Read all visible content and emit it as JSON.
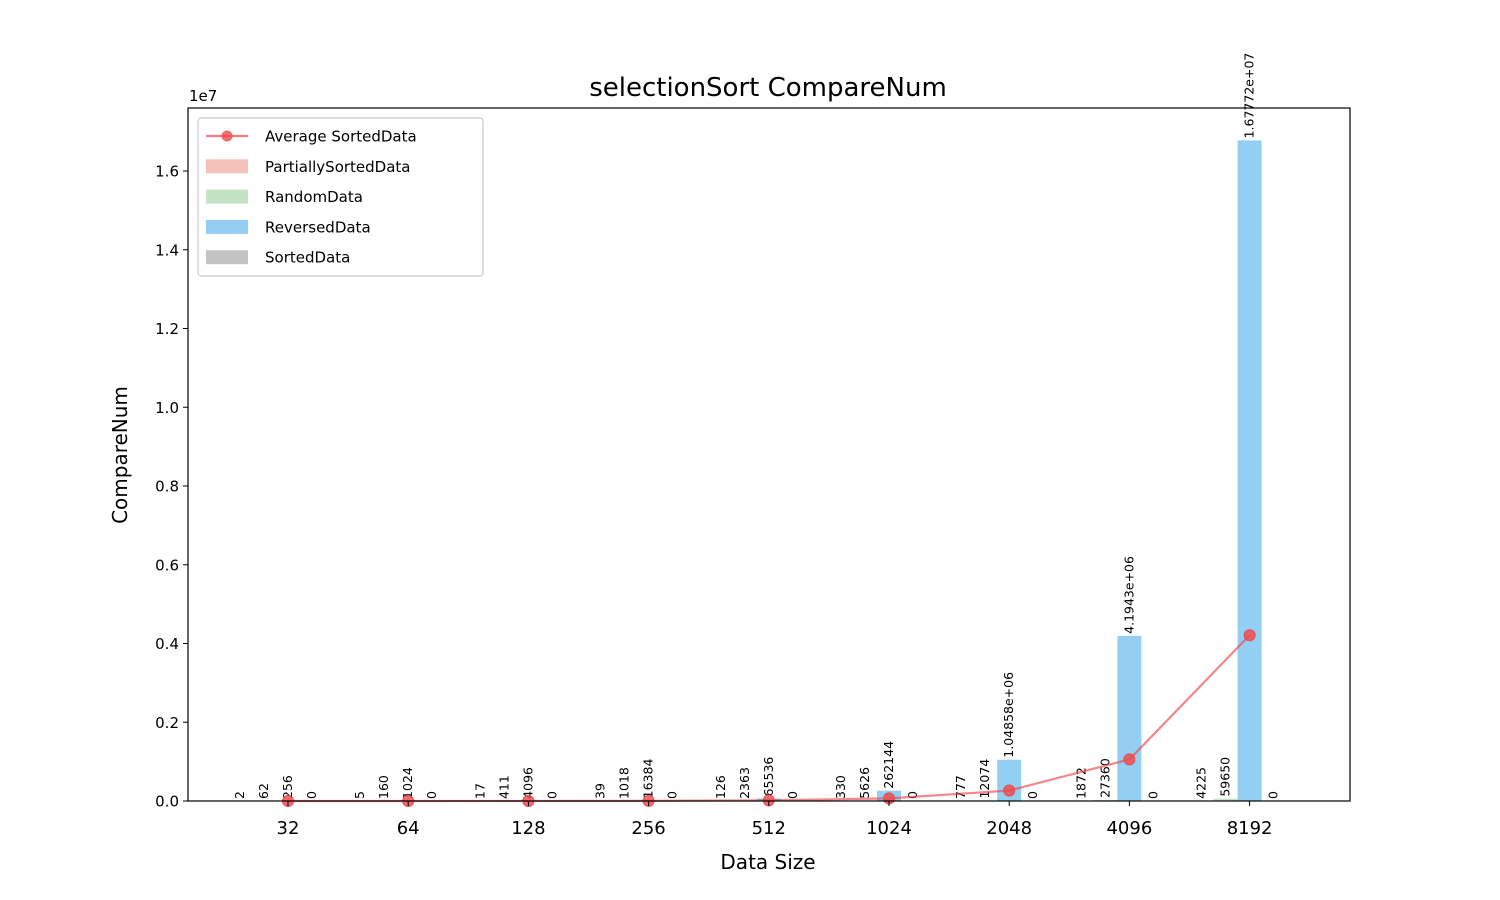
{
  "chart_data": {
    "type": "bar",
    "title": "selectionSort CompareNum",
    "xlabel": "Data Size",
    "ylabel": "CompareNum",
    "offset_text": "1e7",
    "categories": [
      "32",
      "64",
      "128",
      "256",
      "512",
      "1024",
      "2048",
      "4096",
      "8192"
    ],
    "ylim": [
      0,
      17600000
    ],
    "yticks": [
      {
        "value": 0,
        "label": "0.0"
      },
      {
        "value": 2000000,
        "label": "0.2"
      },
      {
        "value": 4000000,
        "label": "0.4"
      },
      {
        "value": 6000000,
        "label": "0.6"
      },
      {
        "value": 8000000,
        "label": "0.8"
      },
      {
        "value": 10000000,
        "label": "1.0"
      },
      {
        "value": 12000000,
        "label": "1.2"
      },
      {
        "value": 14000000,
        "label": "1.4"
      },
      {
        "value": 16000000,
        "label": "1.6"
      }
    ],
    "grid": false,
    "legend_position": "top-left",
    "series": [
      {
        "name": "PartiallySortedData",
        "color": "#f4c2b8",
        "values": [
          2,
          5,
          17,
          39,
          126,
          330,
          777,
          1872,
          4225
        ],
        "labels": [
          "2",
          "5",
          "17",
          "39",
          "126",
          "330",
          "777",
          "1872",
          "4225"
        ]
      },
      {
        "name": "RandomData",
        "color": "#c4e3c3",
        "values": [
          62,
          160,
          411,
          1018,
          2363,
          5626,
          12074,
          27360,
          59650
        ],
        "labels": [
          "62",
          "160",
          "411",
          "1018",
          "2363",
          "5626",
          "12074",
          "27360",
          "59650"
        ]
      },
      {
        "name": "ReversedData",
        "color": "#93cff2",
        "values": [
          256,
          1024,
          4096,
          16384,
          65536,
          262144,
          1048580,
          4194300,
          16777200
        ],
        "labels": [
          "256",
          "1024",
          "4096",
          "16384",
          "65536",
          "262144",
          "1.04858e+06",
          "4.1943e+06",
          "1.67772e+07"
        ]
      },
      {
        "name": "SortedData",
        "color": "#c3c3c3",
        "values": [
          0,
          0,
          0,
          0,
          0,
          0,
          0,
          0,
          0
        ],
        "labels": [
          "0",
          "0",
          "0",
          "0",
          "0",
          "0",
          "0",
          "0",
          "0"
        ]
      }
    ],
    "line": {
      "name": "Average SortedData",
      "color": "#f0474b",
      "values": [
        80,
        297,
        1131,
        4360,
        17006,
        67025,
        265358,
        1055883,
        4210269
      ]
    }
  }
}
